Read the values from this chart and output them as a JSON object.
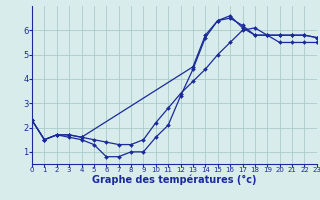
{
  "xlabel": "Graphe des températures (°c)",
  "bg_color": "#d8ecec",
  "grid_color": "#aacccc",
  "line_color": "#1a2a9a",
  "line1_x": [
    0,
    1,
    2,
    3,
    4,
    5,
    6,
    7,
    8,
    9,
    10,
    11,
    12,
    13,
    14,
    15,
    16,
    17,
    18,
    19,
    20,
    21,
    22,
    23
  ],
  "line1_y": [
    2.3,
    1.5,
    1.7,
    1.6,
    1.5,
    1.3,
    0.8,
    0.8,
    1.0,
    1.0,
    1.6,
    2.1,
    3.3,
    4.4,
    5.7,
    6.4,
    6.5,
    6.2,
    5.8,
    5.8,
    5.8,
    5.8,
    5.8,
    5.7
  ],
  "line2_x": [
    0,
    1,
    2,
    3,
    4,
    5,
    6,
    7,
    8,
    9,
    10,
    11,
    12,
    13,
    14,
    15,
    16,
    17,
    18,
    19,
    20,
    21,
    22,
    23
  ],
  "line2_y": [
    2.3,
    1.5,
    1.7,
    1.7,
    1.6,
    1.5,
    1.4,
    1.3,
    1.3,
    1.5,
    2.2,
    2.8,
    3.4,
    3.9,
    4.4,
    5.0,
    5.5,
    6.0,
    6.1,
    5.8,
    5.5,
    5.5,
    5.5,
    5.5
  ],
  "line3_x": [
    0,
    1,
    2,
    3,
    4,
    13,
    14,
    15,
    16,
    17,
    18,
    19,
    20,
    21,
    22,
    23
  ],
  "line3_y": [
    2.3,
    1.5,
    1.7,
    1.7,
    1.6,
    4.5,
    5.8,
    6.4,
    6.6,
    6.1,
    5.8,
    5.8,
    5.8,
    5.8,
    5.8,
    5.7
  ],
  "xlim": [
    0,
    23
  ],
  "ylim": [
    0.5,
    7.0
  ],
  "xticks": [
    0,
    1,
    2,
    3,
    4,
    5,
    6,
    7,
    8,
    9,
    10,
    11,
    12,
    13,
    14,
    15,
    16,
    17,
    18,
    19,
    20,
    21,
    22,
    23
  ],
  "yticks": [
    1,
    2,
    3,
    4,
    5,
    6
  ],
  "xtick_fontsize": 5.0,
  "ytick_fontsize": 6.0,
  "xlabel_fontsize": 7.0,
  "lw": 0.9,
  "ms": 2.0
}
